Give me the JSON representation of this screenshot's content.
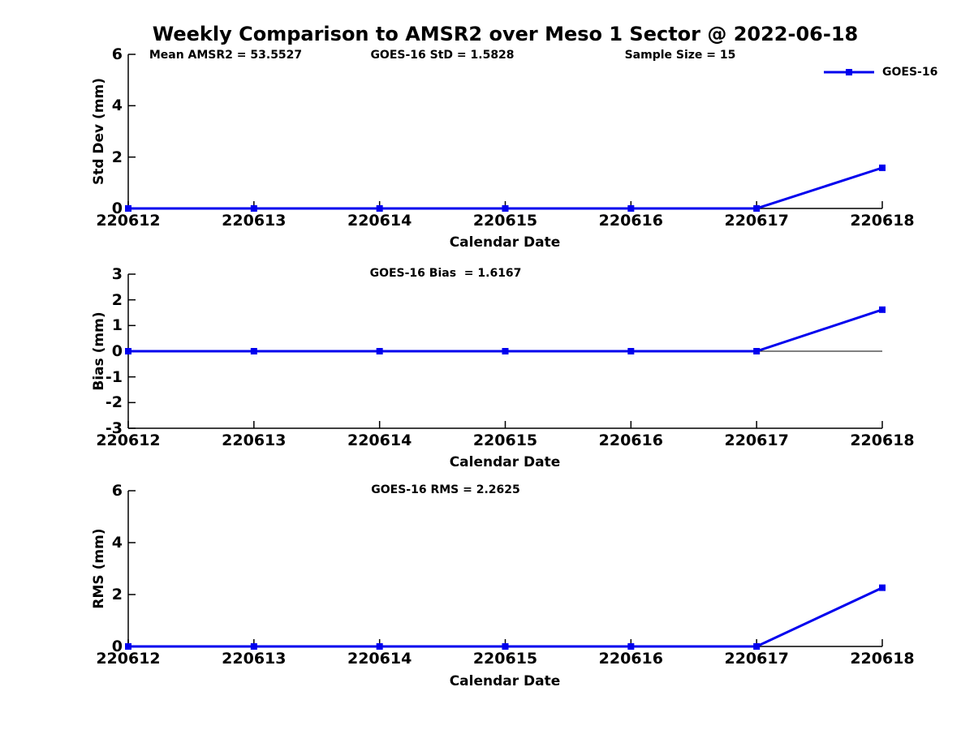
{
  "figure_title": "Weekly Comparison to AMSR2 over Meso 1 Sector @ 2022-06-18",
  "colors": {
    "series": "#0000EE",
    "axis": "#000000",
    "text": "#000000",
    "background": "#FFFFFF"
  },
  "chart_data": [
    {
      "type": "line",
      "name": "std-dev-plot",
      "annotations": [
        "Mean AMSR2 = 53.5527",
        "GOES-16 StD = 1.5828",
        "Sample Size = 15"
      ],
      "xlabel": "Calendar Date",
      "ylabel": "Std Dev (mm)",
      "x": [
        "220612",
        "220613",
        "220614",
        "220615",
        "220616",
        "220617",
        "220618"
      ],
      "series": [
        {
          "name": "GOES-16",
          "values": [
            0,
            0,
            0,
            0,
            0,
            0,
            1.5828
          ]
        }
      ],
      "ylim": [
        0,
        6
      ],
      "yticks": [
        0,
        2,
        4,
        6
      ],
      "grid": false,
      "legend": {
        "label": "GOES-16",
        "position": "top-right"
      }
    },
    {
      "type": "line",
      "name": "bias-plot",
      "title": "GOES-16 Bias  = 1.6167",
      "xlabel": "Calendar Date",
      "ylabel": "Bias (mm)",
      "x": [
        "220612",
        "220613",
        "220614",
        "220615",
        "220616",
        "220617",
        "220618"
      ],
      "series": [
        {
          "name": "GOES-16",
          "values": [
            0,
            0,
            0,
            0,
            0,
            0,
            1.6167
          ]
        }
      ],
      "ylim": [
        -3,
        3
      ],
      "yticks": [
        3,
        2,
        1,
        0,
        -1,
        -2,
        -3
      ],
      "zero_line": true,
      "grid": false
    },
    {
      "type": "line",
      "name": "rms-plot",
      "title": "GOES-16 RMS = 2.2625",
      "xlabel": "Calendar Date",
      "ylabel": "RMS (mm)",
      "x": [
        "220612",
        "220613",
        "220614",
        "220615",
        "220616",
        "220617",
        "220618"
      ],
      "series": [
        {
          "name": "GOES-16",
          "values": [
            0,
            0,
            0,
            0,
            0,
            0,
            2.2625
          ]
        }
      ],
      "ylim": [
        0,
        6
      ],
      "yticks": [
        0,
        2,
        4,
        6
      ],
      "grid": false
    }
  ]
}
